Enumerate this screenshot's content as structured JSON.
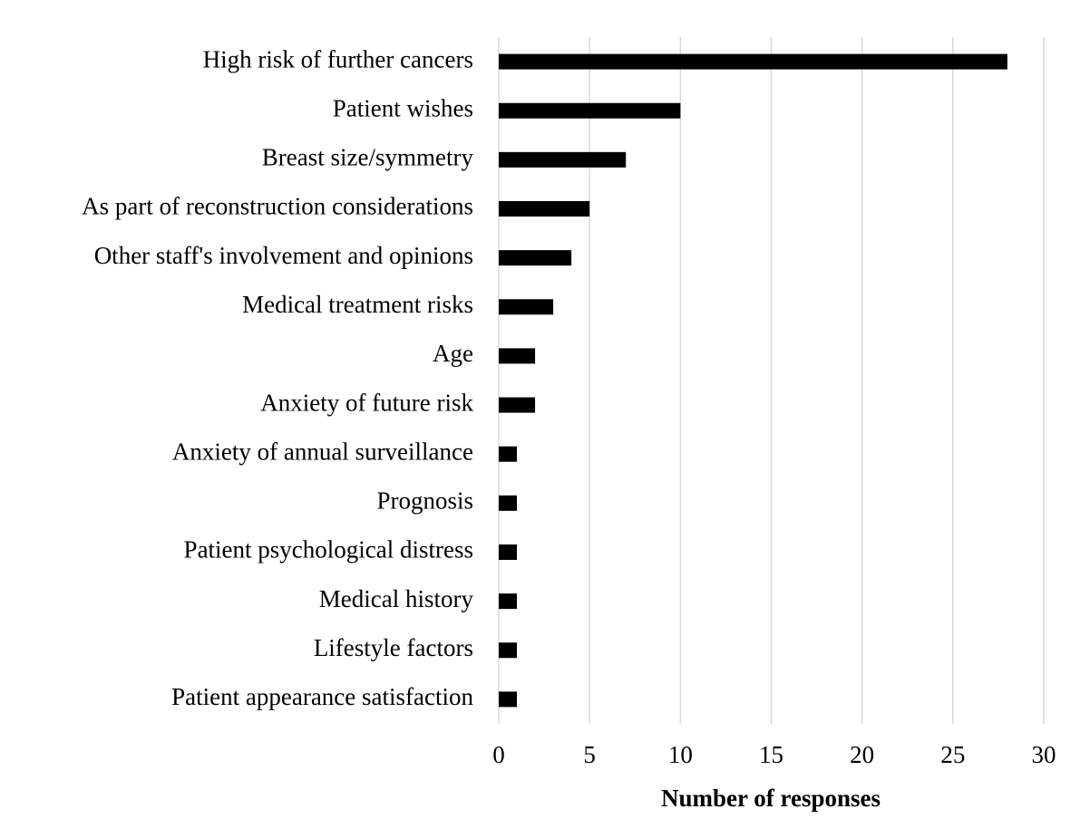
{
  "chart_data": {
    "type": "bar",
    "orientation": "horizontal",
    "x_label": "Number of responses",
    "categories": [
      "High risk of further cancers",
      "Patient wishes",
      "Breast size/symmetry",
      "As part of reconstruction considerations",
      "Other staff's involvement and opinions",
      "Medical treatment risks",
      "Age",
      "Anxiety of future risk",
      "Anxiety of annual surveillance",
      "Prognosis",
      "Patient psychological distress",
      "Medical history",
      "Lifestyle factors",
      "Patient appearance satisfaction"
    ],
    "values": [
      28,
      10,
      7,
      5,
      4,
      3,
      2,
      2,
      1,
      1,
      1,
      1,
      1,
      1
    ],
    "color": "#000000",
    "xlim": [
      0,
      30
    ],
    "xticks": [
      0,
      5,
      10,
      15,
      20,
      25,
      30
    ],
    "grid": true
  }
}
